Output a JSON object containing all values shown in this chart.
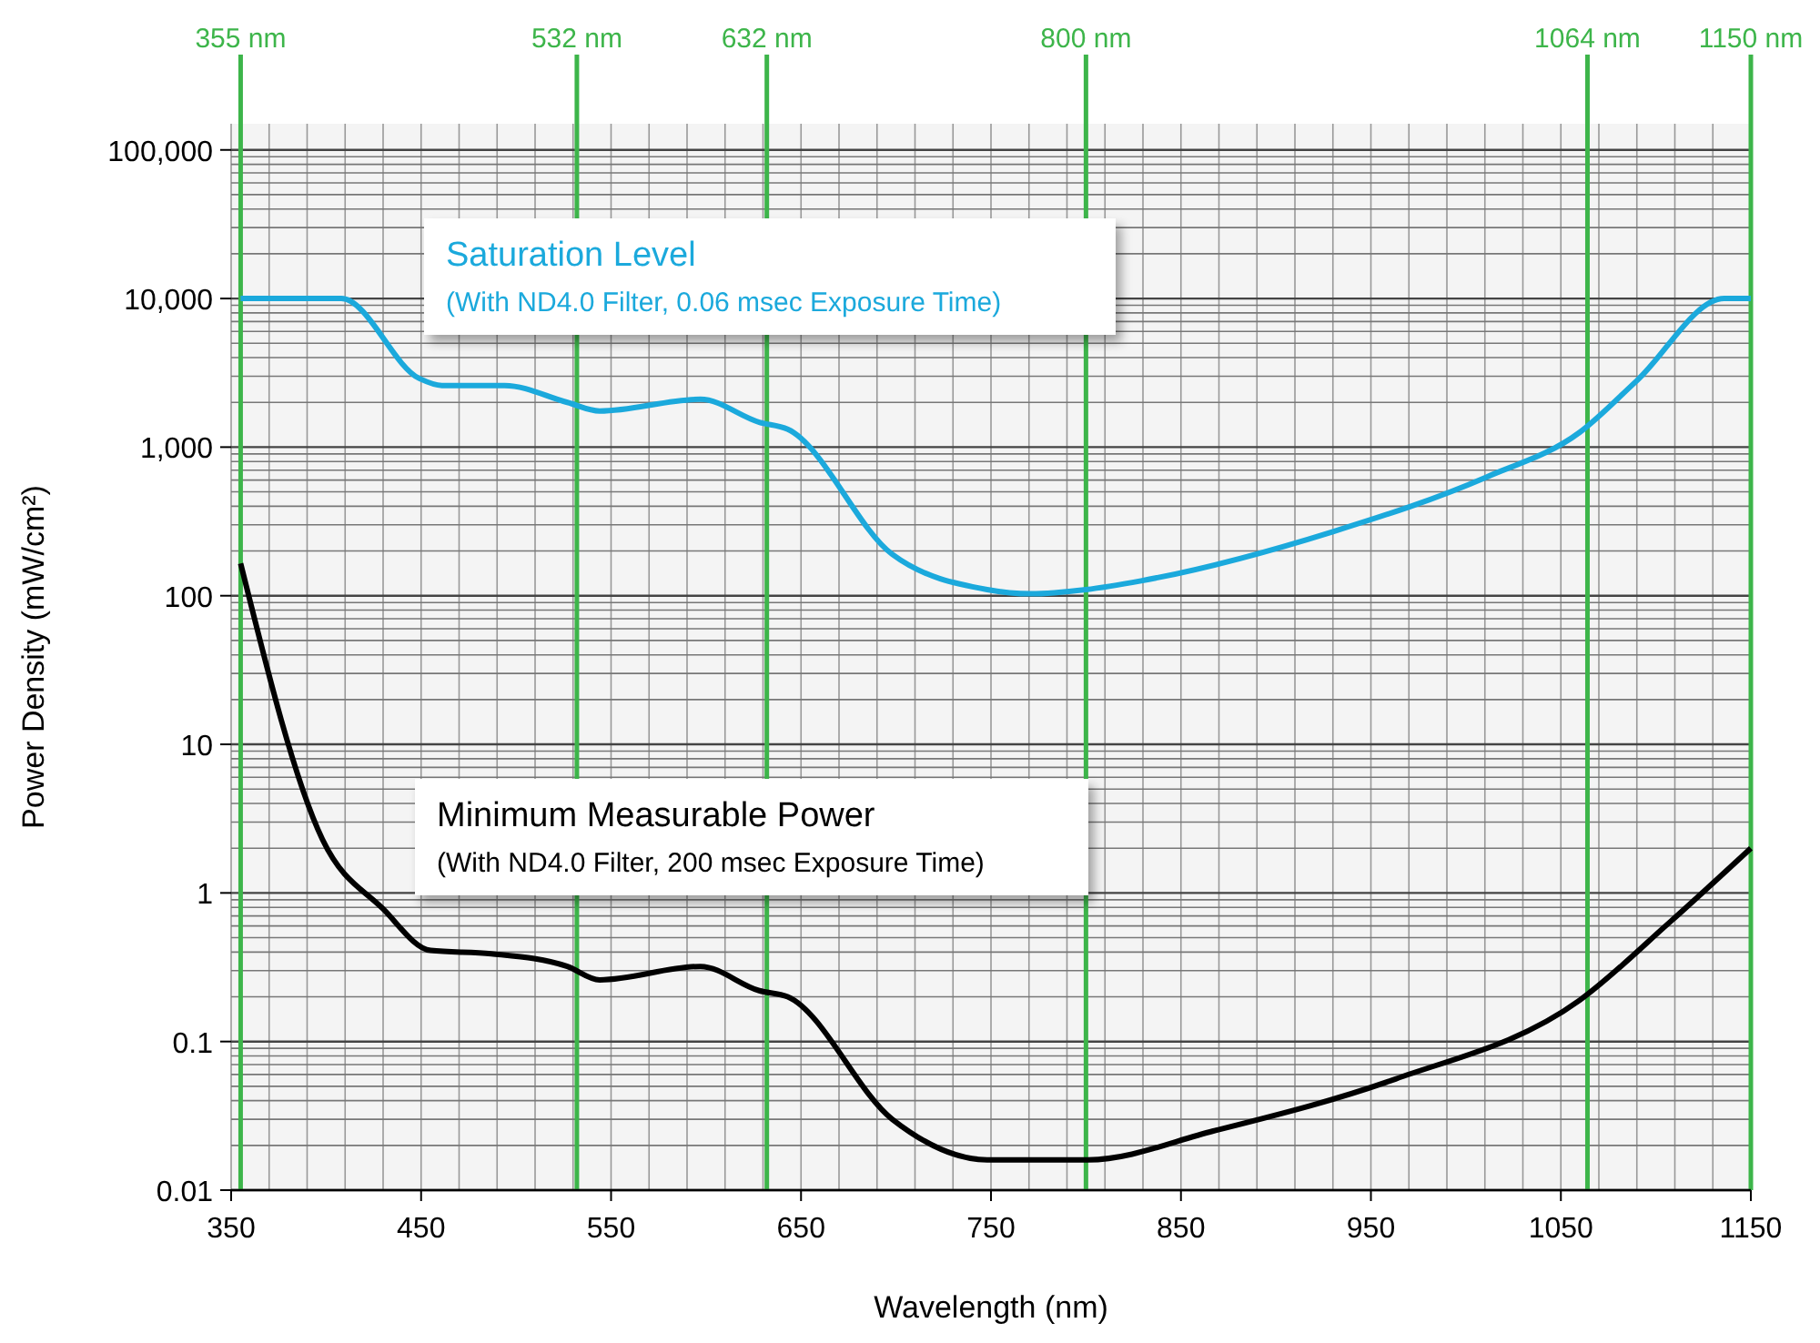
{
  "chart_data": {
    "type": "line",
    "xlabel": "Wavelength (nm)",
    "ylabel": "Power Density (mW/cm²)",
    "xlim": [
      350,
      1150
    ],
    "xticks": [
      350,
      450,
      550,
      650,
      750,
      850,
      950,
      1050,
      1150
    ],
    "ylim": [
      0.01,
      150000
    ],
    "yticks": [
      {
        "value": 0.01,
        "label": "0.01"
      },
      {
        "value": 0.1,
        "label": "0.1"
      },
      1,
      10,
      100,
      {
        "value": 1000,
        "label": "1,000"
      },
      {
        "value": 10000,
        "label": "10,000"
      },
      {
        "value": 100000,
        "label": "100,000"
      }
    ],
    "log": "y",
    "grid": true,
    "marker": "none",
    "line_style": "solid",
    "series": [
      {
        "name": "Saturation Level",
        "color": "#1ba9dc",
        "x": [
          355,
          408,
          449,
          461,
          494,
          527,
          544,
          597,
          628,
          643,
          698,
          748,
          771,
          800,
          829,
          930,
          1011,
          1060,
          1090,
          1136,
          1150
        ],
        "values": [
          10000,
          10000,
          2900,
          2600,
          2600,
          2000,
          1750,
          2100,
          1470,
          1320,
          190,
          110,
          103,
          110,
          126,
          270,
          630,
          1260,
          2800,
          10000,
          10000
        ]
      },
      {
        "name": "Minimum Measurable Power",
        "color": "#000000",
        "x": [
          355,
          398,
          430,
          455,
          487,
          527,
          544,
          597,
          628,
          643,
          698,
          748,
          777,
          801,
          867,
          963,
          1060,
          1107,
          1150
        ],
        "values": [
          165,
          2.3,
          0.78,
          0.41,
          0.39,
          0.32,
          0.26,
          0.32,
          0.22,
          0.2,
          0.03,
          0.016,
          0.016,
          0.016,
          0.025,
          0.056,
          0.19,
          0.63,
          2
        ]
      }
    ],
    "annotations": [
      "(With ND4.0 Filter, 0.06 msec Exposure Time)",
      "(With ND4.0 Filter, 200 msec Exposure Time)"
    ],
    "ref_lines": [
      {
        "axis": "x",
        "value": 355,
        "label": "355 nm",
        "color": "#3db54a"
      },
      {
        "axis": "x",
        "value": 532,
        "label": "532 nm",
        "color": "#3db54a"
      },
      {
        "axis": "x",
        "value": 632,
        "label": "632 nm",
        "color": "#3db54a"
      },
      {
        "axis": "x",
        "value": 800,
        "label": "800 nm",
        "color": "#3db54a"
      },
      {
        "axis": "x",
        "value": 1064,
        "label": "1064 nm",
        "color": "#3db54a"
      },
      {
        "axis": "x",
        "value": 1150,
        "label": "1150 nm",
        "color": "#3db54a"
      }
    ]
  }
}
